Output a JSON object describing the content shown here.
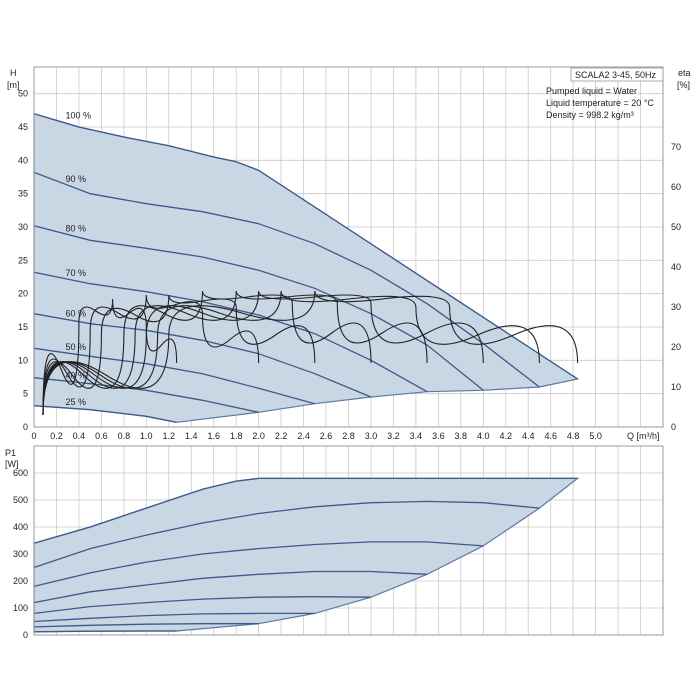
{
  "chart_data": [
    {
      "type": "line",
      "title": "SCALA2 3-45, 50Hz",
      "annotations": [
        "Pumped liquid = Water",
        "Liquid temperature = 20 °C",
        "Density = 998.2 kg/m³"
      ],
      "ylabel": "H",
      "yunit": "[m]",
      "y2label": "eta",
      "y2unit": "[%]",
      "xlabel": "Q [m³/h]",
      "xlim": [
        0,
        5.6
      ],
      "ylim": [
        0,
        54
      ],
      "y2lim": [
        0,
        90
      ],
      "xticks": [
        "0",
        "0.2",
        "0.4",
        "0.6",
        "0.8",
        "1.0",
        "1.2",
        "1.4",
        "1.6",
        "1.8",
        "2.0",
        "2.2",
        "2.4",
        "2.6",
        "2.8",
        "3.0",
        "3.2",
        "3.4",
        "3.6",
        "3.8",
        "4.0",
        "4.2",
        "4.4",
        "4.6",
        "4.8",
        "5.0"
      ],
      "yticks": [
        "0",
        "5",
        "10",
        "15",
        "20",
        "25",
        "30",
        "35",
        "40",
        "45",
        "50"
      ],
      "y2ticks": [
        "0",
        "10",
        "20",
        "30",
        "40",
        "50",
        "60",
        "70"
      ],
      "grid": true,
      "series": [
        {
          "name": "100 %",
          "x": [
            0,
            0.4,
            0.8,
            1.2,
            1.6,
            1.8,
            2.0,
            4.84
          ],
          "y": [
            47,
            45,
            43.5,
            42.2,
            40.5,
            39.8,
            38.5,
            7.2
          ]
        },
        {
          "name": "90 %",
          "x": [
            0,
            0.5,
            1.0,
            1.5,
            2.0,
            2.5,
            3.0,
            3.5,
            4.0,
            4.5
          ],
          "y": [
            38.2,
            35,
            33.5,
            32.3,
            30.5,
            27.5,
            23.5,
            18.5,
            12.5,
            6.0
          ]
        },
        {
          "name": "80 %",
          "x": [
            0,
            0.5,
            1.0,
            1.5,
            2.0,
            2.5,
            3.0,
            3.5,
            4.0
          ],
          "y": [
            30.2,
            28,
            26.8,
            25.5,
            23.5,
            20.8,
            17,
            12.3,
            5.5
          ]
        },
        {
          "name": "70 %",
          "x": [
            0,
            0.5,
            1.0,
            1.5,
            2.0,
            2.5,
            3.0,
            3.5
          ],
          "y": [
            23.2,
            21.5,
            20.3,
            18.8,
            16.8,
            14,
            10,
            5.3
          ]
        },
        {
          "name": "60 %",
          "x": [
            0,
            0.5,
            1.0,
            1.5,
            2.0,
            2.5,
            3.0
          ],
          "y": [
            17.0,
            15.5,
            14.5,
            13,
            11,
            8,
            4.5
          ]
        },
        {
          "name": "50 %",
          "x": [
            0,
            0.5,
            1.0,
            1.5,
            2.0,
            2.5
          ],
          "y": [
            11.8,
            10.6,
            9.5,
            8,
            5.8,
            3.5
          ]
        },
        {
          "name": "40 %",
          "x": [
            0,
            0.5,
            1.0,
            1.5,
            2.0
          ],
          "y": [
            7.4,
            6.5,
            5.5,
            4,
            2.2
          ]
        },
        {
          "name": "25 %",
          "x": [
            0,
            0.5,
            1.0,
            1.27
          ],
          "y": [
            3.2,
            2.6,
            1.6,
            0.7
          ]
        }
      ],
      "efficiency_curves": [
        {
          "x": [
            0.08,
            0.4,
            0.7,
            1.0,
            1.27
          ],
          "y2": [
            3,
            26,
            32,
            25,
            16
          ]
        },
        {
          "x": [
            0.08,
            0.5,
            1.0,
            1.5,
            2.0
          ],
          "y2": [
            3,
            24,
            33,
            28,
            16
          ]
        },
        {
          "x": [
            0.08,
            0.6,
            1.2,
            1.8,
            2.5
          ],
          "y2": [
            3,
            23,
            33,
            30,
            16
          ]
        },
        {
          "x": [
            0.08,
            0.8,
            1.5,
            2.3,
            3.0
          ],
          "y2": [
            3,
            23,
            34,
            31,
            16
          ]
        },
        {
          "x": [
            0.08,
            0.9,
            1.8,
            2.7,
            3.5
          ],
          "y2": [
            3,
            23,
            34,
            31,
            16
          ]
        },
        {
          "x": [
            0.08,
            1.0,
            2.0,
            3.0,
            4.0
          ],
          "y2": [
            3,
            23,
            34,
            31,
            16
          ]
        },
        {
          "x": [
            0.08,
            1.1,
            2.2,
            3.4,
            4.5
          ],
          "y2": [
            3,
            23,
            34,
            30,
            16
          ]
        },
        {
          "x": [
            0.08,
            1.2,
            2.5,
            3.7,
            4.84
          ],
          "y2": [
            3,
            23,
            34,
            30,
            16
          ]
        }
      ]
    },
    {
      "type": "line",
      "ylabel": "P1",
      "yunit": "[W]",
      "xlim": [
        0,
        5.6
      ],
      "ylim": [
        0,
        700
      ],
      "yticks": [
        "0",
        "100",
        "200",
        "300",
        "400",
        "500",
        "600"
      ],
      "grid": true,
      "series": [
        {
          "x": [
            0,
            0.5,
            1.0,
            1.5,
            1.8,
            2.0,
            4.84
          ],
          "y": [
            340,
            400,
            470,
            540,
            570,
            580,
            580
          ]
        },
        {
          "x": [
            0,
            0.5,
            1.0,
            1.5,
            2.0,
            2.5,
            3.0,
            3.5,
            4.0,
            4.5
          ],
          "y": [
            250,
            320,
            370,
            415,
            450,
            475,
            490,
            495,
            490,
            470
          ]
        },
        {
          "x": [
            0,
            0.5,
            1.0,
            1.5,
            2.0,
            2.5,
            3.0,
            3.5,
            4.0
          ],
          "y": [
            180,
            230,
            270,
            300,
            320,
            335,
            345,
            345,
            330
          ]
        },
        {
          "x": [
            0,
            0.5,
            1.0,
            1.5,
            2.0,
            2.5,
            3.0,
            3.5
          ],
          "y": [
            120,
            160,
            185,
            210,
            225,
            235,
            235,
            225
          ]
        },
        {
          "x": [
            0,
            0.5,
            1.0,
            1.5,
            2.0,
            2.5,
            3.0
          ],
          "y": [
            80,
            105,
            120,
            133,
            140,
            142,
            140
          ]
        },
        {
          "x": [
            0,
            0.5,
            1.0,
            1.5,
            2.0,
            2.5
          ],
          "y": [
            50,
            62,
            72,
            78,
            80,
            80
          ]
        },
        {
          "x": [
            0,
            0.5,
            1.0,
            1.5,
            2.0
          ],
          "y": [
            30,
            36,
            40,
            42,
            42
          ]
        },
        {
          "x": [
            0,
            0.5,
            1.0,
            1.27
          ],
          "y": [
            12,
            14,
            15,
            15
          ]
        }
      ]
    }
  ]
}
